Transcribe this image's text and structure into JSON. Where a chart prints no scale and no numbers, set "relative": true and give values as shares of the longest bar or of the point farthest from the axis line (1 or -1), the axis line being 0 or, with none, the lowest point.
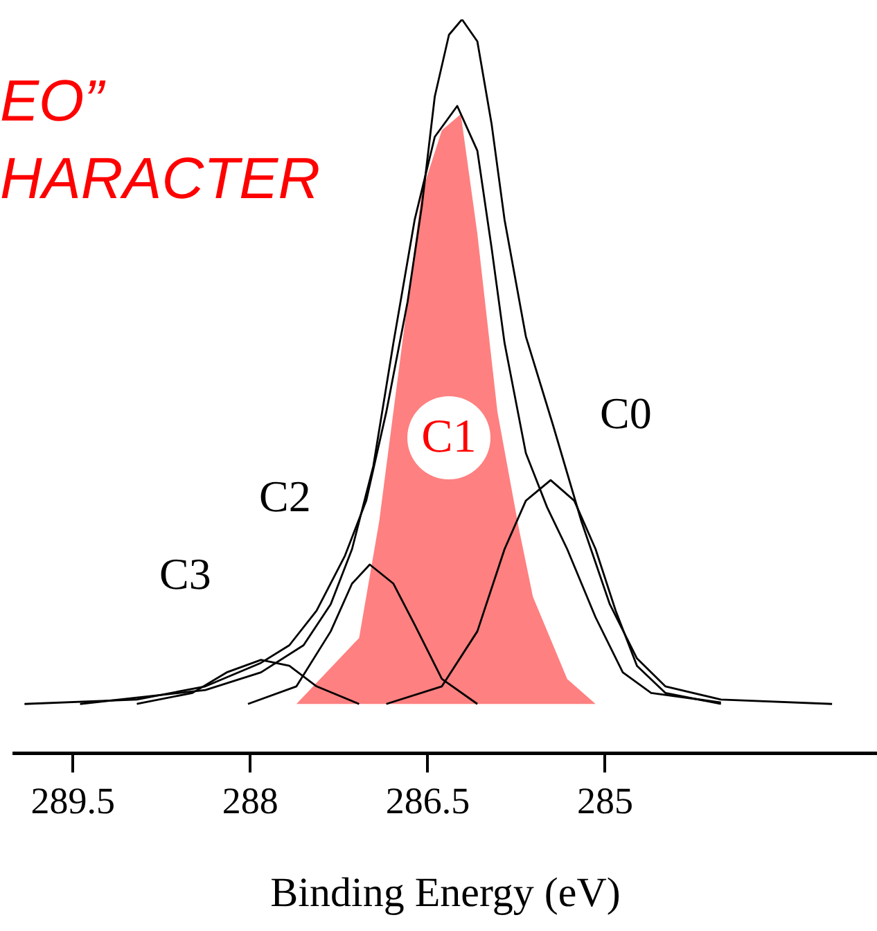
{
  "chart_data": {
    "type": "line",
    "xlabel": "Binding Energy (eV)",
    "relative": true,
    "xlim": [
      290.0,
      282.7
    ],
    "xticks": [
      289.5,
      288,
      286.5,
      285
    ],
    "legend": false,
    "marker": "none",
    "line_style": "solid",
    "annotations": [
      "EO”",
      "HARACTER",
      "C0",
      "C1",
      "C2",
      "C3"
    ],
    "series": [
      {
        "type": "area",
        "color": "#ff8080",
        "x": [
          287.61,
          287.08,
          286.91,
          286.73,
          286.55,
          286.38,
          286.22,
          286.08,
          285.91,
          285.73,
          285.61,
          285.32,
          285.08
        ],
        "values": [
          0.067,
          0.157,
          0.316,
          0.54,
          0.764,
          0.849,
          0.871,
          0.708,
          0.465,
          0.307,
          0.213,
          0.101,
          0.067
        ]
      },
      {
        "type": "line",
        "color": "#000000",
        "x": [
          289.91,
          288.96,
          288.38,
          287.91,
          287.67,
          287.44,
          287.2,
          287.02,
          286.85,
          286.67,
          286.55,
          286.44,
          286.32,
          286.21,
          286.08,
          285.96,
          285.85,
          285.67,
          285.44,
          285.2,
          284.96,
          284.73,
          284.49,
          284.02,
          283.08
        ],
        "values": [
          0.067,
          0.073,
          0.091,
          0.123,
          0.147,
          0.194,
          0.269,
          0.344,
          0.465,
          0.615,
          0.745,
          0.895,
          0.979,
          1,
          0.97,
          0.858,
          0.727,
          0.568,
          0.447,
          0.316,
          0.203,
          0.129,
          0.091,
          0.073,
          0.067
        ]
      },
      {
        "type": "line",
        "color": "#000000",
        "x": [
          289.44,
          288.38,
          287.91,
          287.55,
          287.32,
          287.14,
          286.96,
          286.79,
          286.61,
          286.44,
          286.25,
          286.08,
          285.96,
          285.85,
          285.67,
          285.49,
          285.32,
          285.08,
          284.85,
          284.61,
          284.02
        ],
        "values": [
          0.067,
          0.086,
          0.11,
          0.147,
          0.203,
          0.278,
          0.391,
          0.559,
          0.727,
          0.84,
          0.882,
          0.821,
          0.689,
          0.559,
          0.409,
          0.335,
          0.278,
          0.185,
          0.11,
          0.082,
          0.069
        ]
      },
      {
        "type": "line",
        "color": "#000000",
        "x": [
          286.85,
          286.38,
          286.08,
          285.85,
          285.67,
          285.46,
          285.26,
          285.08,
          284.91,
          284.73,
          284.49,
          284.02
        ],
        "values": [
          0.067,
          0.091,
          0.166,
          0.278,
          0.344,
          0.372,
          0.344,
          0.278,
          0.194,
          0.119,
          0.082,
          0.067
        ]
      },
      {
        "type": "line",
        "color": "#000000",
        "x": [
          288.02,
          287.61,
          287.32,
          287.14,
          286.99,
          286.79,
          286.61,
          286.38,
          286.08
        ],
        "values": [
          0.067,
          0.091,
          0.166,
          0.231,
          0.257,
          0.231,
          0.175,
          0.101,
          0.067
        ]
      },
      {
        "type": "line",
        "color": "#000000",
        "x": [
          288.96,
          288.49,
          288.2,
          287.91,
          287.67,
          287.44,
          287.08
        ],
        "values": [
          0.067,
          0.082,
          0.11,
          0.127,
          0.119,
          0.091,
          0.067
        ]
      }
    ]
  }
}
